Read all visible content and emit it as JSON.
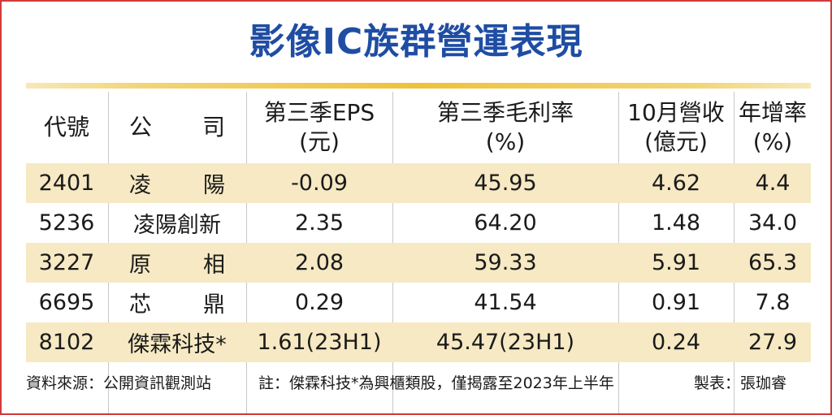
{
  "title": "影像IC族群營運表現",
  "headers": {
    "code": "代號",
    "company_a": "公",
    "company_b": "司",
    "eps_line1": "第三季EPS",
    "eps_line2": "(元)",
    "margin_line1": "第三季毛利率",
    "margin_line2": "(%)",
    "revenue_line1": "10月營收",
    "revenue_line2": "(億元)",
    "growth_line1": "年增率",
    "growth_line2": "(%)"
  },
  "rows": [
    {
      "code": "2401",
      "name_a": "凌",
      "name_b": "陽",
      "name": "",
      "eps": "-0.09",
      "margin": "45.95",
      "revenue": "4.62",
      "growth": "4.4"
    },
    {
      "code": "5236",
      "name": "凌陽創新",
      "eps": "2.35",
      "margin": "64.20",
      "revenue": "1.48",
      "growth": "34.0"
    },
    {
      "code": "3227",
      "name_a": "原",
      "name_b": "相",
      "name": "",
      "eps": "2.08",
      "margin": "59.33",
      "revenue": "5.91",
      "growth": "65.3"
    },
    {
      "code": "6695",
      "name_a": "芯",
      "name_b": "鼎",
      "name": "",
      "eps": "0.29",
      "margin": "41.54",
      "revenue": "0.91",
      "growth": "7.8"
    },
    {
      "code": "8102",
      "name": "傑霖科技*",
      "eps": "1.61(23H1)",
      "margin": "45.47(23H1)",
      "revenue": "0.24",
      "growth": "27.9"
    }
  ],
  "footer": {
    "source": "資料來源：公開資訊觀測站",
    "note": "註：傑霖科技*為興櫃類股，僅揭露至2023年上半年",
    "credit": "製表：張珈睿"
  },
  "colors": {
    "title": "#1f4da3",
    "frame": "#d23a3a",
    "shade": "#f6e9c3",
    "bar": "#eec23a"
  }
}
